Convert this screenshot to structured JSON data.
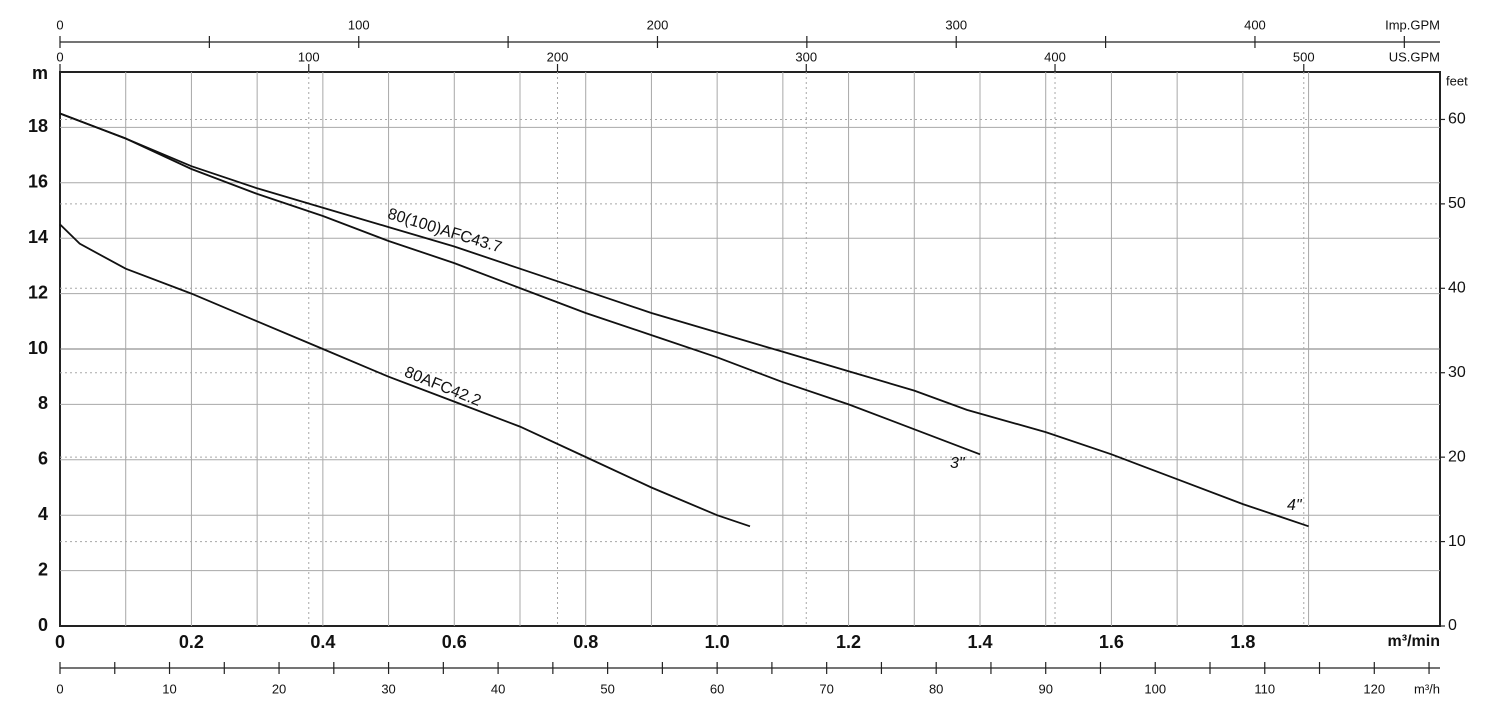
{
  "chart_data": {
    "type": "line",
    "xlabel": "m³/min",
    "ylabel": "m",
    "xlim": [
      0,
      2.1
    ],
    "ylim": [
      0,
      20
    ],
    "xticks": [
      0,
      0.2,
      0.4,
      0.6,
      0.8,
      {
        "value": 1,
        "label": "1.0"
      },
      1.2,
      1.4,
      1.6,
      1.8
    ],
    "yticks": [
      0,
      2,
      4,
      6,
      8,
      10,
      12,
      14,
      16,
      18
    ],
    "y2label": "feet",
    "y2lim": [
      0,
      65.62
    ],
    "y2ticks": [
      0,
      10,
      20,
      30,
      40,
      50,
      60
    ],
    "secondary_axes": [
      {
        "label": "Imp.GPM",
        "position": "top",
        "lim": [
          0,
          461.94
        ],
        "ticks": [
          0,
          100,
          200,
          300,
          400
        ]
      },
      {
        "label": "US.GPM",
        "position": "top-inner",
        "lim": [
          0,
          554.76
        ],
        "ticks": [
          0,
          100,
          200,
          300,
          400,
          500
        ]
      },
      {
        "label": "m³/h",
        "position": "bottom",
        "lim": [
          0,
          126
        ],
        "ticks": [
          0,
          10,
          20,
          30,
          40,
          50,
          60,
          70,
          80,
          90,
          100,
          110,
          120
        ]
      }
    ],
    "grid": true,
    "annotations": [
      "80(100)AFC43.7"
    ],
    "series": [
      {
        "name": "80AFC42.2",
        "color": "#111111",
        "x": [
          0,
          0.03,
          0.1,
          0.2,
          0.3,
          0.4,
          0.5,
          0.6,
          0.7,
          0.8,
          0.9,
          1.0,
          1.05
        ],
        "values": [
          14.5,
          13.8,
          12.9,
          12.0,
          11.0,
          10.0,
          9.0,
          8.1,
          7.2,
          6.1,
          5.0,
          4.0,
          3.6
        ]
      },
      {
        "name": "3\"",
        "color": "#111111",
        "x": [
          0,
          0.1,
          0.2,
          0.3,
          0.4,
          0.5,
          0.6,
          0.7,
          0.8,
          0.9,
          1.0,
          1.1,
          1.2,
          1.3,
          1.4
        ],
        "values": [
          18.5,
          17.6,
          16.5,
          15.6,
          14.8,
          13.9,
          13.1,
          12.2,
          11.3,
          10.5,
          9.7,
          8.8,
          8.0,
          7.1,
          6.2
        ]
      },
      {
        "name": "4\"",
        "color": "#111111",
        "x": [
          0,
          0.1,
          0.2,
          0.3,
          0.4,
          0.5,
          0.6,
          0.7,
          0.8,
          0.9,
          1.0,
          1.1,
          1.2,
          1.3,
          1.38,
          1.5,
          1.6,
          1.7,
          1.8,
          1.9
        ],
        "values": [
          18.5,
          17.6,
          16.6,
          15.8,
          15.1,
          14.4,
          13.7,
          12.9,
          12.1,
          11.3,
          10.6,
          9.9,
          9.2,
          8.5,
          7.8,
          7.0,
          6.2,
          5.3,
          4.4,
          3.6
        ]
      }
    ]
  }
}
